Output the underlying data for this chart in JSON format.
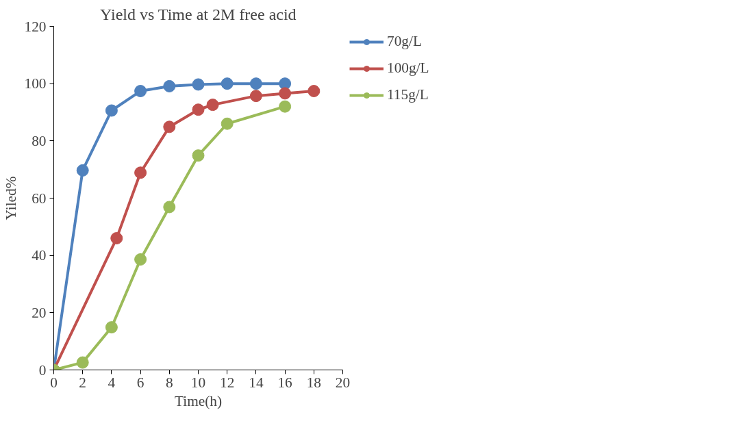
{
  "chart_data": {
    "type": "line",
    "title": "Yield vs Time at 2M free acid",
    "xlabel": "Time(h)",
    "ylabel": "Yiled%",
    "xlim": [
      0,
      20
    ],
    "xticks": [
      0,
      2,
      4,
      6,
      8,
      10,
      12,
      14,
      16,
      18,
      20
    ],
    "ylim": [
      0,
      120
    ],
    "yticks": [
      0,
      20,
      40,
      60,
      80,
      100,
      120
    ],
    "grid": false,
    "legend": "right",
    "marker": "circle",
    "line_style": "solid",
    "series": [
      {
        "name": "70g/L",
        "color": "#4f81bd",
        "x": [
          0,
          2,
          4,
          6,
          8,
          10,
          12,
          14,
          16
        ],
        "values": [
          0,
          69.7,
          90.6,
          97.4,
          99.1,
          99.7,
          100,
          100,
          100
        ]
      },
      {
        "name": "100g/L",
        "color": "#c0504d",
        "x": [
          0,
          4.35,
          6,
          8,
          10,
          11,
          14,
          16,
          18
        ],
        "values": [
          0,
          46,
          68.9,
          84.9,
          90.9,
          92.6,
          95.7,
          96.6,
          97.4
        ]
      },
      {
        "name": "115g/L",
        "color": "#9bbb59",
        "x": [
          0,
          2,
          4,
          6,
          8,
          10,
          12,
          16
        ],
        "values": [
          0,
          2.6,
          14.9,
          38.6,
          56.9,
          74.9,
          86,
          92
        ]
      }
    ]
  }
}
